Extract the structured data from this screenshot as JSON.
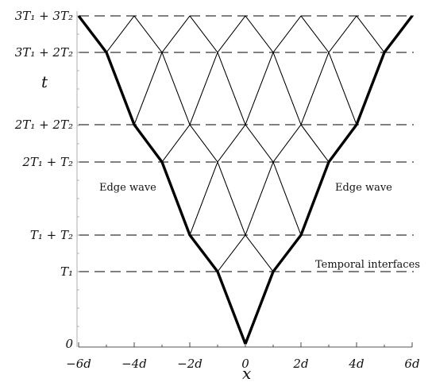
{
  "axes": {
    "x_label": "x",
    "t_label": "t",
    "x_ticks": [
      {
        "value": -6,
        "label": "−6d"
      },
      {
        "value": -4,
        "label": "−4d"
      },
      {
        "value": -2,
        "label": "−2d"
      },
      {
        "value": 0,
        "label": "0"
      },
      {
        "value": 2,
        "label": "2d"
      },
      {
        "value": 4,
        "label": "4d"
      },
      {
        "value": 6,
        "label": "6d"
      }
    ],
    "t_ticks": [
      {
        "level": 0,
        "label": "0"
      },
      {
        "level": 1,
        "label": "T₁"
      },
      {
        "level": 2,
        "label": "T₁ + T₂"
      },
      {
        "level": 3,
        "label": "2T₁ + T₂"
      },
      {
        "level": 4,
        "label": "2T₁ + 2T₂"
      },
      {
        "level": 5,
        "label": "3T₁ + 2T₂"
      },
      {
        "level": 6,
        "label": "3T₁ + 3T₂"
      }
    ]
  },
  "annotations": {
    "edge_wave_left": "Edge wave",
    "edge_wave_right": "Edge wave",
    "temporal_interfaces": "Temporal interfaces"
  },
  "edge_path_x": [
    0,
    1,
    2,
    3,
    4,
    5,
    6
  ]
}
